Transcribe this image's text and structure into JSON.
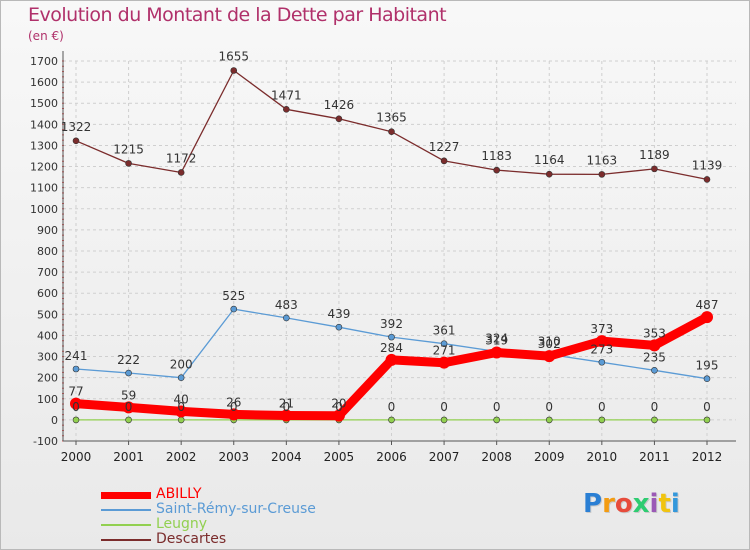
{
  "title": "Evolution du Montant de la Dette par Habitant",
  "unit": "(en €)",
  "logo": "Proxiti",
  "chart_data": {
    "type": "line",
    "x": [
      "2000",
      "2001",
      "2002",
      "2003",
      "2004",
      "2005",
      "2006",
      "2007",
      "2008",
      "2009",
      "2010",
      "2011",
      "2012"
    ],
    "ylim": [
      -100,
      1700
    ],
    "yticks": [
      -100,
      0,
      100,
      200,
      300,
      400,
      500,
      600,
      700,
      800,
      900,
      1000,
      1100,
      1200,
      1300,
      1400,
      1500,
      1600,
      1700
    ],
    "grid": true,
    "legend_position": "bottom-left",
    "series": [
      {
        "name": "ABILLY",
        "color": "#ff0000",
        "values": [
          77,
          59,
          40,
          26,
          21,
          20,
          284,
          271,
          319,
          302,
          373,
          353,
          487
        ]
      },
      {
        "name": "Saint-Rémy-sur-Creuse",
        "color": "#5b9bd5",
        "values": [
          241,
          222,
          200,
          525,
          483,
          439,
          392,
          361,
          324,
          310,
          273,
          235,
          195
        ]
      },
      {
        "name": "Leugny",
        "color": "#92d050",
        "values": [
          0,
          0,
          0,
          0,
          0,
          0,
          0,
          0,
          0,
          0,
          0,
          0,
          0
        ]
      },
      {
        "name": "Descartes",
        "color": "#7b2c2c",
        "values": [
          1322,
          1215,
          1172,
          1655,
          1471,
          1426,
          1365,
          1227,
          1183,
          1164,
          1163,
          1189,
          1139
        ]
      }
    ]
  },
  "legend": [
    {
      "label": "ABILLY",
      "color": "#ff0000"
    },
    {
      "label": "Saint-Rémy-sur-Creuse",
      "color": "#5b9bd5"
    },
    {
      "label": "Leugny",
      "color": "#92d050"
    },
    {
      "label": "Descartes",
      "color": "#7b2c2c"
    }
  ]
}
